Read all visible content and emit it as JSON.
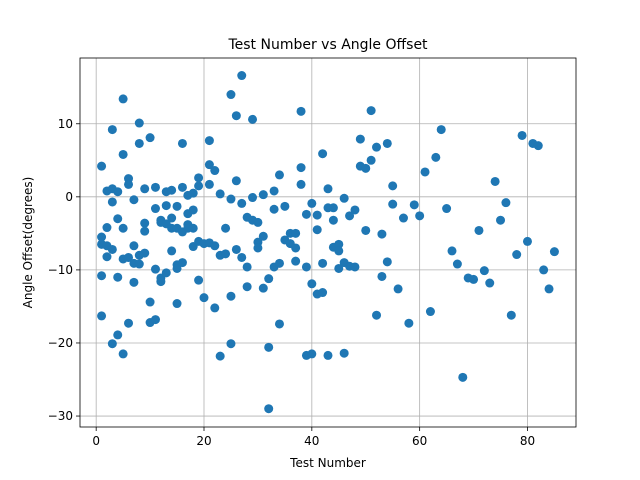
{
  "chart_data": {
    "type": "scatter",
    "title": "Test Number vs Angle Offset",
    "xlabel": "Test Number",
    "ylabel": "Angle Offset(degrees)",
    "xlim": [
      -3,
      89
    ],
    "ylim": [
      -31.5,
      19
    ],
    "xticks": [
      0,
      20,
      40,
      60,
      80
    ],
    "yticks": [
      -30,
      -20,
      -10,
      0,
      10
    ],
    "grid": true,
    "marker_color": "#1f77b4",
    "points": [
      [
        1,
        4.2
      ],
      [
        1,
        -5.5
      ],
      [
        1,
        -6.5
      ],
      [
        1,
        -10.8
      ],
      [
        1,
        -16.3
      ],
      [
        2,
        -6.7
      ],
      [
        2,
        -8.2
      ],
      [
        2,
        -4.2
      ],
      [
        2,
        0.8
      ],
      [
        3,
        1.1
      ],
      [
        3,
        -0.7
      ],
      [
        3,
        9.2
      ],
      [
        3,
        -20.1
      ],
      [
        3,
        -7.2
      ],
      [
        4,
        0.7
      ],
      [
        4,
        -3.0
      ],
      [
        4,
        -11.0
      ],
      [
        4,
        -18.9
      ],
      [
        5,
        13.4
      ],
      [
        5,
        5.8
      ],
      [
        5,
        -4.3
      ],
      [
        5,
        -8.5
      ],
      [
        5,
        -21.5
      ],
      [
        6,
        2.5
      ],
      [
        6,
        1.7
      ],
      [
        6,
        -8.3
      ],
      [
        6,
        -17.3
      ],
      [
        7,
        -6.7
      ],
      [
        7,
        -9.1
      ],
      [
        7,
        -0.4
      ],
      [
        7,
        -11.7
      ],
      [
        8,
        10.1
      ],
      [
        8,
        7.3
      ],
      [
        8,
        -8.0
      ],
      [
        8,
        -9.2
      ],
      [
        9,
        1.1
      ],
      [
        9,
        -3.6
      ],
      [
        9,
        -4.7
      ],
      [
        9,
        -7.7
      ],
      [
        10,
        8.1
      ],
      [
        10,
        -14.4
      ],
      [
        10,
        -17.2
      ],
      [
        11,
        1.3
      ],
      [
        11,
        -1.6
      ],
      [
        11,
        -9.9
      ],
      [
        11,
        -16.8
      ],
      [
        12,
        -3.5
      ],
      [
        12,
        -11.1
      ],
      [
        12,
        -11.6
      ],
      [
        12,
        -3.2
      ],
      [
        13,
        0.7
      ],
      [
        13,
        -1.2
      ],
      [
        13,
        -3.7
      ],
      [
        13,
        -10.4
      ],
      [
        14,
        0.9
      ],
      [
        14,
        -2.9
      ],
      [
        14,
        -4.3
      ],
      [
        14,
        -7.4
      ],
      [
        15,
        -1.3
      ],
      [
        15,
        -4.3
      ],
      [
        15,
        -9.3
      ],
      [
        15,
        -9.8
      ],
      [
        15,
        -14.6
      ],
      [
        16,
        7.3
      ],
      [
        16,
        1.3
      ],
      [
        16,
        -4.8
      ],
      [
        16,
        -9.0
      ],
      [
        17,
        -2.3
      ],
      [
        17,
        -3.8
      ],
      [
        17,
        0.2
      ],
      [
        17,
        -4.3
      ],
      [
        18,
        0.5
      ],
      [
        18,
        -4.3
      ],
      [
        18,
        -6.8
      ],
      [
        18,
        -1.8
      ],
      [
        19,
        2.6
      ],
      [
        19,
        1.5
      ],
      [
        19,
        -6.1
      ],
      [
        19,
        -11.4
      ],
      [
        20,
        -6.4
      ],
      [
        20,
        -13.8
      ],
      [
        21,
        7.7
      ],
      [
        21,
        4.4
      ],
      [
        21,
        1.7
      ],
      [
        21,
        -6.3
      ],
      [
        22,
        3.6
      ],
      [
        22,
        -6.7
      ],
      [
        22,
        -15.2
      ],
      [
        23,
        0.4
      ],
      [
        23,
        -8.0
      ],
      [
        23,
        -21.8
      ],
      [
        24,
        -4.3
      ],
      [
        24,
        -7.8
      ],
      [
        25,
        14.0
      ],
      [
        25,
        -0.3
      ],
      [
        25,
        -13.6
      ],
      [
        25,
        -20.1
      ],
      [
        26,
        11.1
      ],
      [
        26,
        2.2
      ],
      [
        26,
        -7.2
      ],
      [
        27,
        16.6
      ],
      [
        27,
        -0.9
      ],
      [
        27,
        -8.3
      ],
      [
        28,
        -2.8
      ],
      [
        28,
        -9.6
      ],
      [
        28,
        -12.3
      ],
      [
        29,
        10.6
      ],
      [
        29,
        -0.1
      ],
      [
        29,
        -3.2
      ],
      [
        30,
        -3.5
      ],
      [
        30,
        -6.2
      ],
      [
        30,
        -7.0
      ],
      [
        31,
        0.3
      ],
      [
        31,
        -5.4
      ],
      [
        31,
        -12.5
      ],
      [
        32,
        -11.2
      ],
      [
        32,
        -20.6
      ],
      [
        32,
        -29.0
      ],
      [
        33,
        0.8
      ],
      [
        33,
        -1.7
      ],
      [
        33,
        -9.6
      ],
      [
        34,
        3.0
      ],
      [
        34,
        -9.1
      ],
      [
        34,
        -17.4
      ],
      [
        35,
        -1.3
      ],
      [
        35,
        -5.9
      ],
      [
        36,
        -5.0
      ],
      [
        36,
        -6.4
      ],
      [
        37,
        -5.0
      ],
      [
        37,
        -7.0
      ],
      [
        37,
        -8.8
      ],
      [
        38,
        11.7
      ],
      [
        38,
        4.0
      ],
      [
        38,
        1.7
      ],
      [
        39,
        -2.4
      ],
      [
        39,
        -9.6
      ],
      [
        39,
        -21.7
      ],
      [
        40,
        -0.9
      ],
      [
        40,
        -11.9
      ],
      [
        40,
        -21.5
      ],
      [
        41,
        -2.5
      ],
      [
        41,
        -4.5
      ],
      [
        41,
        -13.3
      ],
      [
        42,
        5.9
      ],
      [
        42,
        -9.1
      ],
      [
        42,
        -13.1
      ],
      [
        43,
        1.1
      ],
      [
        43,
        -1.5
      ],
      [
        43,
        -21.7
      ],
      [
        44,
        -1.5
      ],
      [
        44,
        -3.2
      ],
      [
        44,
        -6.9
      ],
      [
        45,
        -6.5
      ],
      [
        45,
        -7.4
      ],
      [
        45,
        -9.8
      ],
      [
        46,
        -0.2
      ],
      [
        46,
        -9.0
      ],
      [
        46,
        -21.4
      ],
      [
        47,
        -2.6
      ],
      [
        47,
        -9.5
      ],
      [
        48,
        -1.8
      ],
      [
        48,
        -9.6
      ],
      [
        49,
        7.9
      ],
      [
        49,
        4.2
      ],
      [
        50,
        3.9
      ],
      [
        50,
        -4.6
      ],
      [
        51,
        11.8
      ],
      [
        51,
        5.0
      ],
      [
        52,
        6.8
      ],
      [
        52,
        -16.2
      ],
      [
        53,
        -5.1
      ],
      [
        53,
        -10.9
      ],
      [
        54,
        7.3
      ],
      [
        54,
        -8.9
      ],
      [
        55,
        1.5
      ],
      [
        55,
        -1.0
      ],
      [
        56,
        -12.6
      ],
      [
        57,
        -2.9
      ],
      [
        58,
        -17.3
      ],
      [
        59,
        -1.1
      ],
      [
        60,
        -2.6
      ],
      [
        61,
        3.4
      ],
      [
        62,
        -15.7
      ],
      [
        63,
        5.4
      ],
      [
        64,
        9.2
      ],
      [
        65,
        -1.6
      ],
      [
        66,
        -7.4
      ],
      [
        67,
        -9.2
      ],
      [
        68,
        -24.7
      ],
      [
        69,
        -11.1
      ],
      [
        70,
        -11.3
      ],
      [
        71,
        -4.6
      ],
      [
        72,
        -10.1
      ],
      [
        73,
        -11.8
      ],
      [
        74,
        2.1
      ],
      [
        75,
        -3.2
      ],
      [
        76,
        -0.8
      ],
      [
        77,
        -16.2
      ],
      [
        78,
        -7.9
      ],
      [
        79,
        8.4
      ],
      [
        80,
        -6.1
      ],
      [
        81,
        7.3
      ],
      [
        82,
        7.0
      ],
      [
        83,
        -10.0
      ],
      [
        84,
        -12.6
      ],
      [
        85,
        -7.5
      ]
    ]
  }
}
